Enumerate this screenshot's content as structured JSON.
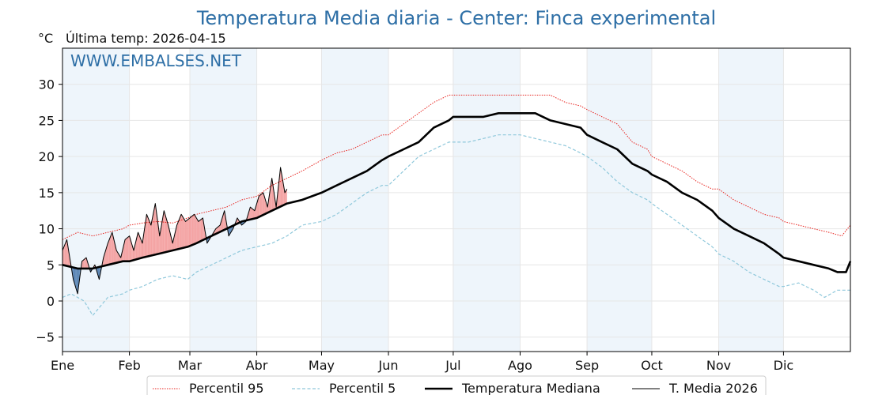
{
  "chart_data": {
    "type": "line",
    "title": "Temperatura Media diaria - Center: Finca experimental",
    "ylabel": "°C",
    "subtitle": "Última temp: 2026-04-15",
    "watermark": "WWW.EMBALSES.NET",
    "ylim": [
      -7,
      35
    ],
    "yticks": [
      -5,
      0,
      5,
      10,
      15,
      20,
      25,
      30
    ],
    "ytick_labels": [
      "−5",
      "0",
      "5",
      "10",
      "15",
      "20",
      "25",
      "30"
    ],
    "xlim": [
      1,
      366
    ],
    "months": [
      "Ene",
      "Feb",
      "Mar",
      "Abr",
      "May",
      "Jun",
      "Jul",
      "Ago",
      "Sep",
      "Oct",
      "Nov",
      "Dic"
    ],
    "month_start_days": [
      1,
      32,
      60,
      91,
      121,
      152,
      182,
      213,
      244,
      274,
      305,
      335
    ],
    "grid": true,
    "legend_position": "bottom",
    "colors": {
      "p95": "#e8231e",
      "p5": "#8fc8db",
      "median": "#000000",
      "current": "#000000",
      "above": "#f4a3a3",
      "below": "#5b86b6",
      "band": "#eef5fb",
      "title": "#2e6fa6"
    },
    "series": [
      {
        "name": "Percentil 95",
        "style": "dotted-red",
        "x": [
          1,
          8,
          15,
          22,
          29,
          32,
          38,
          45,
          52,
          59,
          63,
          70,
          77,
          84,
          91,
          98,
          105,
          112,
          121,
          128,
          135,
          142,
          149,
          152,
          159,
          166,
          173,
          180,
          182,
          189,
          196,
          203,
          210,
          213,
          220,
          227,
          234,
          241,
          244,
          251,
          258,
          265,
          272,
          274,
          281,
          288,
          295,
          302,
          305,
          312,
          319,
          326,
          333,
          335,
          342,
          349,
          356,
          362,
          366
        ],
        "y": [
          8.5,
          9.5,
          9.0,
          9.5,
          10.0,
          10.5,
          10.8,
          11.0,
          10.8,
          11.5,
          12.0,
          12.5,
          13.0,
          14.0,
          14.5,
          16.0,
          17.0,
          18.0,
          19.5,
          20.5,
          21.0,
          22.0,
          23.0,
          23.0,
          24.5,
          26.0,
          27.5,
          28.5,
          28.5,
          28.5,
          28.5,
          28.5,
          28.5,
          28.5,
          28.5,
          28.5,
          27.5,
          27.0,
          26.5,
          25.5,
          24.5,
          22.0,
          21.0,
          20.0,
          19.0,
          18.0,
          16.5,
          15.5,
          15.5,
          14.0,
          13.0,
          12.0,
          11.5,
          11.0,
          10.5,
          10.0,
          9.5,
          9.0,
          10.5
        ]
      },
      {
        "name": "Percentil 5",
        "style": "dashed-lightblue",
        "x": [
          1,
          5,
          11,
          15,
          22,
          29,
          32,
          38,
          45,
          52,
          59,
          63,
          70,
          77,
          84,
          91,
          98,
          105,
          112,
          121,
          128,
          135,
          142,
          149,
          152,
          159,
          166,
          173,
          180,
          182,
          189,
          196,
          203,
          210,
          213,
          220,
          227,
          234,
          241,
          244,
          251,
          258,
          265,
          272,
          274,
          281,
          288,
          295,
          302,
          305,
          312,
          319,
          326,
          333,
          335,
          342,
          349,
          354,
          360,
          366
        ],
        "y": [
          0.5,
          1.0,
          0.0,
          -2.0,
          0.5,
          1.0,
          1.5,
          2.0,
          3.0,
          3.5,
          3.0,
          4.0,
          5.0,
          6.0,
          7.0,
          7.5,
          8.0,
          9.0,
          10.5,
          11.0,
          12.0,
          13.5,
          15.0,
          16.0,
          16.0,
          18.0,
          20.0,
          21.0,
          22.0,
          22.0,
          22.0,
          22.5,
          23.0,
          23.0,
          23.0,
          22.5,
          22.0,
          21.5,
          20.5,
          20.0,
          18.5,
          16.5,
          15.0,
          14.0,
          13.5,
          12.0,
          10.5,
          9.0,
          7.5,
          6.5,
          5.5,
          4.0,
          3.0,
          2.0,
          2.0,
          2.5,
          1.5,
          0.5,
          1.5,
          1.5
        ]
      },
      {
        "name": "Temperatura Mediana",
        "style": "thick-black",
        "x": [
          1,
          8,
          15,
          22,
          29,
          32,
          38,
          45,
          52,
          59,
          63,
          70,
          77,
          84,
          91,
          98,
          105,
          112,
          121,
          128,
          135,
          142,
          149,
          152,
          159,
          166,
          173,
          180,
          182,
          189,
          196,
          203,
          210,
          213,
          220,
          227,
          234,
          241,
          244,
          251,
          258,
          265,
          272,
          274,
          281,
          288,
          295,
          302,
          305,
          312,
          319,
          326,
          333,
          335,
          342,
          349,
          356,
          360,
          364,
          366
        ],
        "y": [
          5.0,
          4.5,
          4.5,
          5.0,
          5.5,
          5.5,
          6.0,
          6.5,
          7.0,
          7.5,
          8.0,
          9.0,
          10.0,
          11.0,
          11.5,
          12.5,
          13.5,
          14.0,
          15.0,
          16.0,
          17.0,
          18.0,
          19.5,
          20.0,
          21.0,
          22.0,
          24.0,
          25.0,
          25.5,
          25.5,
          25.5,
          26.0,
          26.0,
          26.0,
          26.0,
          25.0,
          24.5,
          24.0,
          23.0,
          22.0,
          21.0,
          19.0,
          18.0,
          17.5,
          16.5,
          15.0,
          14.0,
          12.5,
          11.5,
          10.0,
          9.0,
          8.0,
          6.5,
          6.0,
          5.5,
          5.0,
          4.5,
          4.0,
          4.0,
          5.5
        ]
      },
      {
        "name": "T. Media 2026",
        "style": "thin-black",
        "x": [
          1,
          3,
          6,
          8,
          10,
          12,
          14,
          16,
          18,
          20,
          22,
          24,
          26,
          28,
          30,
          32,
          34,
          36,
          38,
          40,
          42,
          44,
          46,
          48,
          50,
          52,
          54,
          56,
          58,
          60,
          62,
          64,
          66,
          68,
          70,
          72,
          74,
          76,
          78,
          80,
          82,
          84,
          86,
          88,
          90,
          92,
          94,
          96,
          98,
          100,
          102,
          104,
          105
        ],
        "y": [
          7.0,
          8.5,
          3.0,
          1.0,
          5.5,
          6.0,
          4.0,
          5.0,
          3.0,
          6.0,
          8.0,
          9.5,
          7.0,
          6.0,
          8.5,
          9.0,
          7.0,
          9.5,
          8.0,
          12.0,
          10.5,
          13.5,
          9.0,
          12.5,
          10.5,
          8.0,
          10.5,
          12.0,
          11.0,
          11.5,
          12.0,
          11.0,
          11.5,
          8.0,
          9.0,
          10.0,
          10.5,
          12.5,
          9.0,
          10.0,
          11.5,
          10.5,
          11.0,
          13.0,
          12.5,
          14.5,
          15.0,
          13.0,
          17.0,
          13.0,
          18.5,
          15.0,
          15.5
        ]
      }
    ]
  },
  "legend": {
    "items": [
      {
        "key": "p95",
        "label": "Percentil 95"
      },
      {
        "key": "p5",
        "label": "Percentil 5"
      },
      {
        "key": "median",
        "label": "Temperatura Mediana"
      },
      {
        "key": "current",
        "label": "T. Media 2026"
      }
    ]
  }
}
